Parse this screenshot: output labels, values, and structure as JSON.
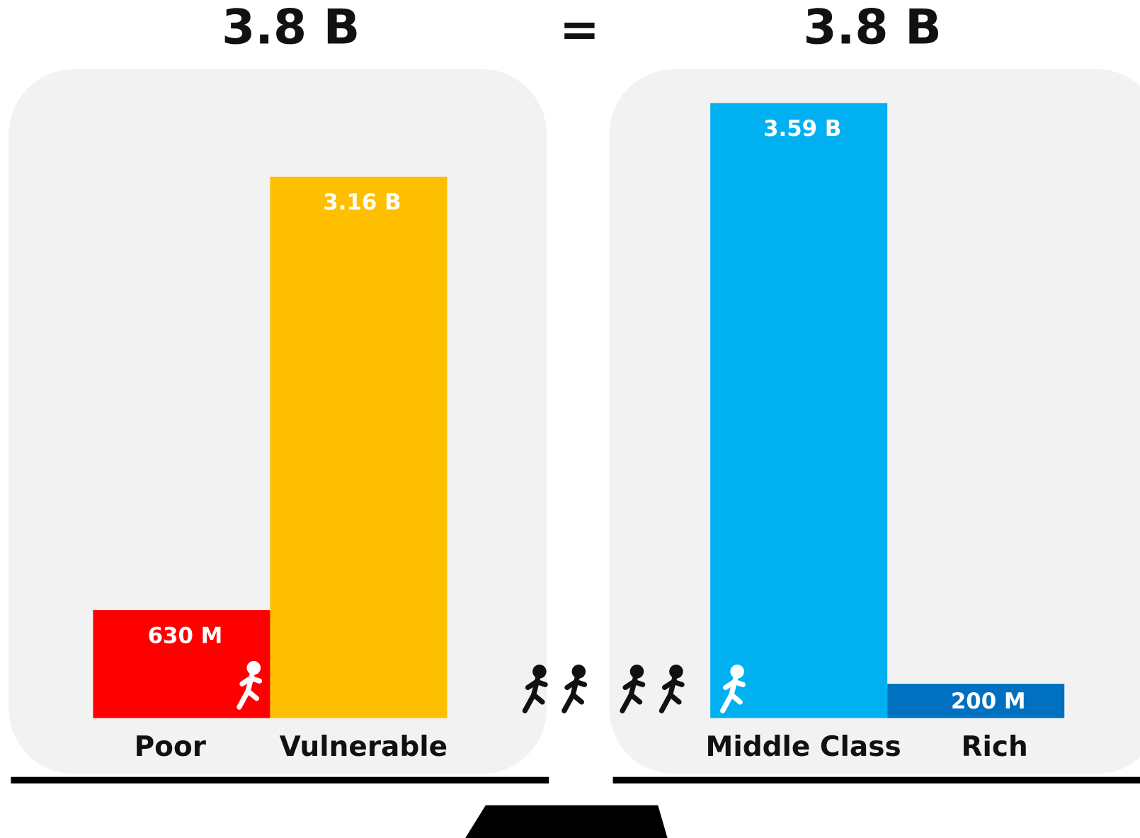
{
  "chart_data": [
    {
      "type": "bar",
      "title": "3.8 B",
      "categories": [
        "Poor",
        "Vulnerable"
      ],
      "values": [
        630,
        3160
      ],
      "value_labels": [
        "630 M",
        "3.16 B"
      ],
      "colors": [
        "#ff0000",
        "#fdbf00"
      ]
    },
    {
      "type": "bar",
      "title": "3.8 B",
      "categories": [
        "Middle Class",
        "Rich"
      ],
      "values": [
        3590,
        200
      ],
      "value_labels": [
        "3.59 B",
        "200 M"
      ],
      "colors": [
        "#00b0f0",
        "#0070c0"
      ]
    }
  ],
  "separator": "="
}
